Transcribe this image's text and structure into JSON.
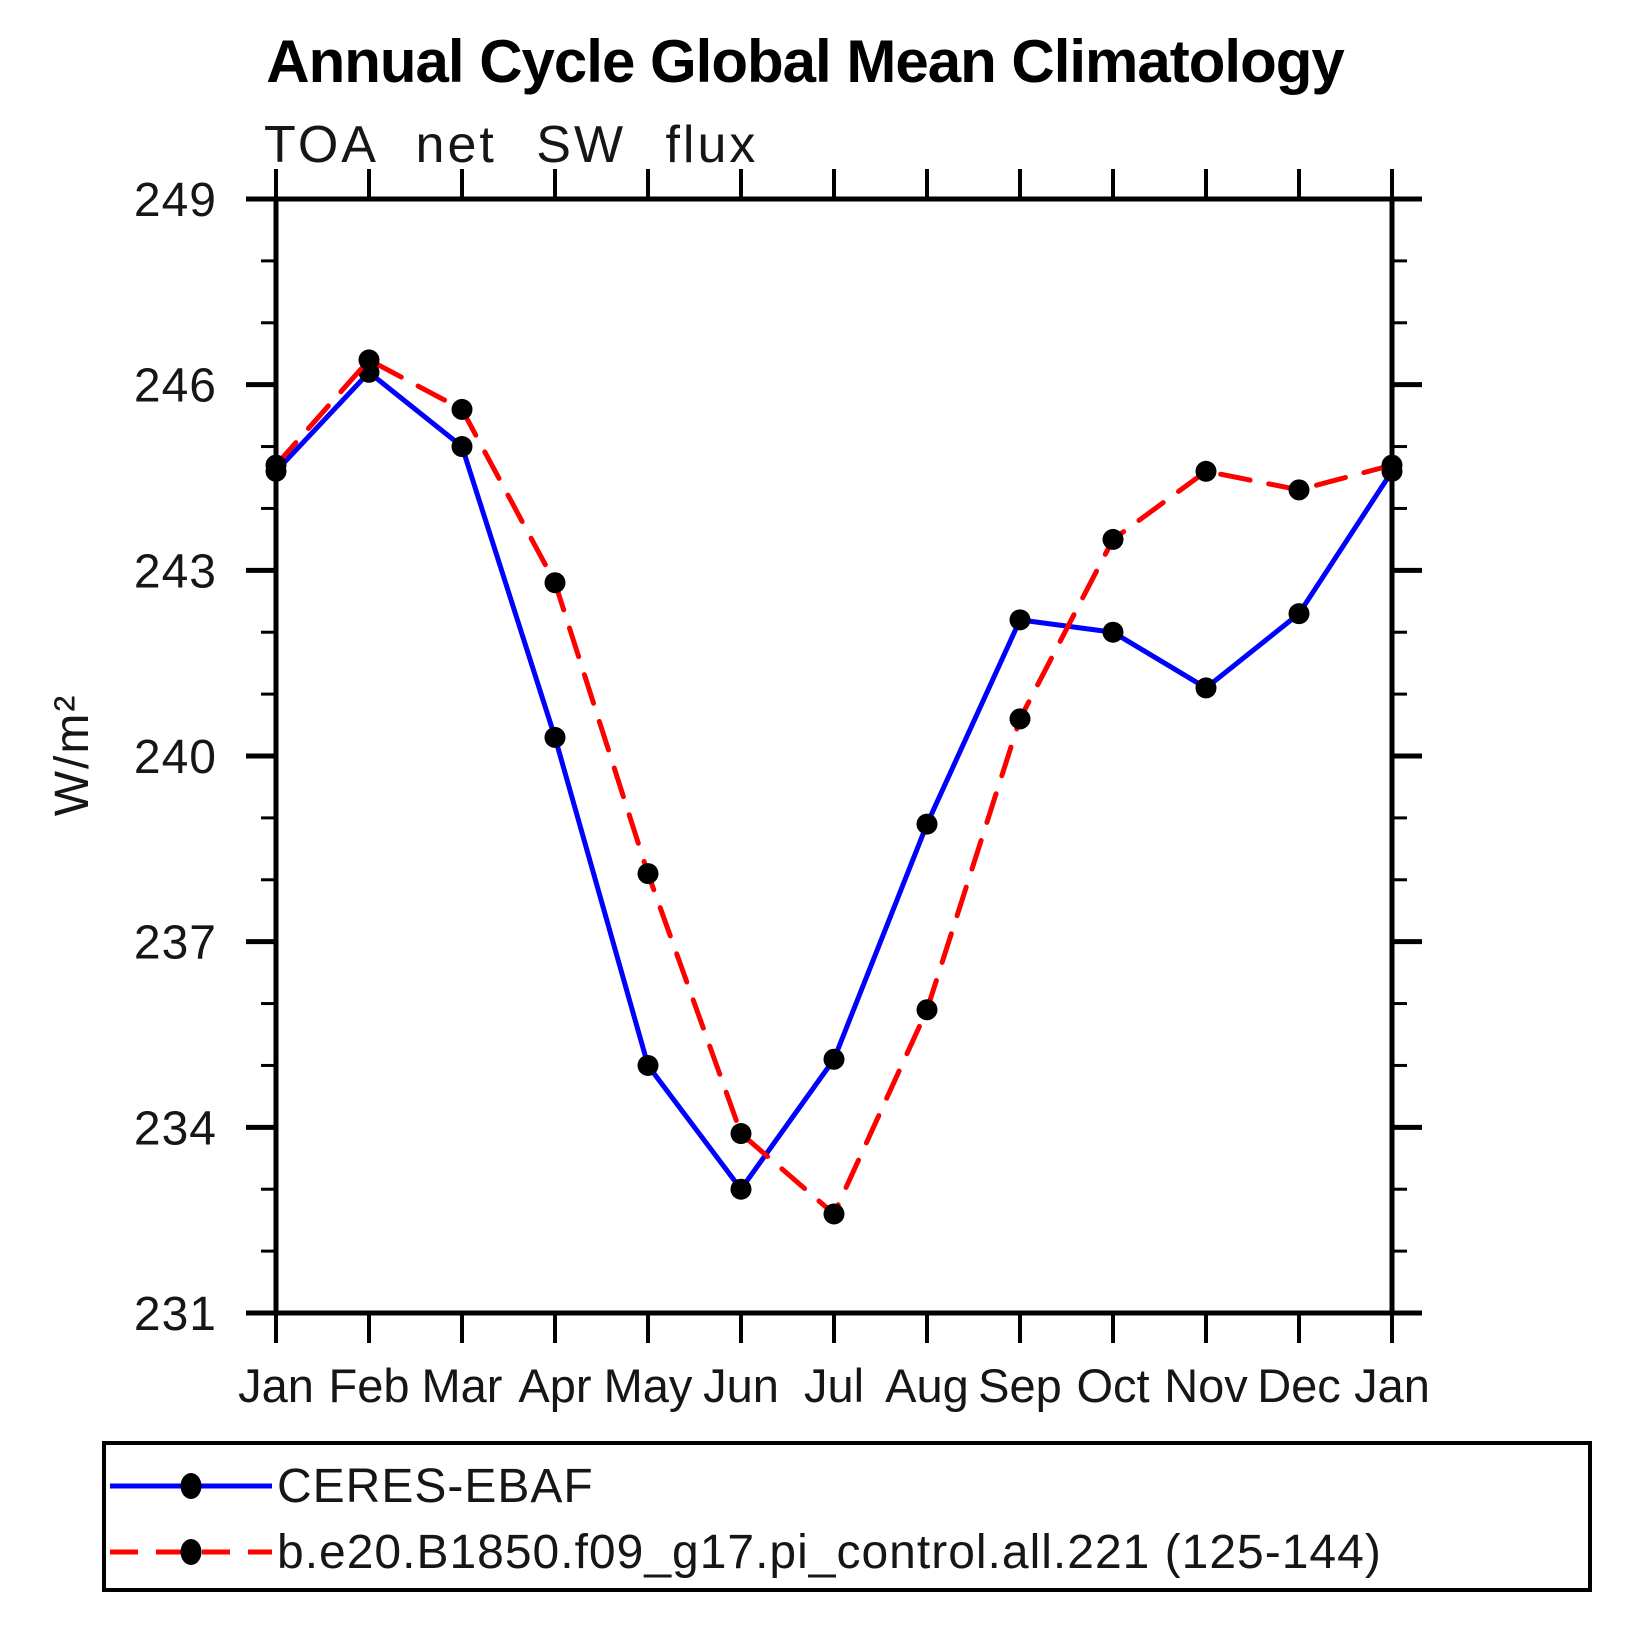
{
  "chart_data": {
    "type": "line",
    "title": "Annual Cycle Global Mean Climatology",
    "subtitle": "TOA net SW flux",
    "ylabel": "W/m²",
    "xlabel": "",
    "categories": [
      "Jan",
      "Feb",
      "Mar",
      "Apr",
      "May",
      "Jun",
      "Jul",
      "Aug",
      "Sep",
      "Oct",
      "Nov",
      "Dec",
      "Jan"
    ],
    "y_axis": {
      "min": 231,
      "max": 249,
      "major_step": 3,
      "minor_step": 1,
      "major_tick_labels": [
        "231",
        "234",
        "237",
        "240",
        "243",
        "246",
        "249"
      ]
    },
    "grid": "off",
    "legend_position": "bottom",
    "series": [
      {
        "name": "CERES-EBAF",
        "color": "#0000ff",
        "line_style": "solid",
        "marker": "filled-circle",
        "marker_color": "#000000",
        "values": [
          244.6,
          246.2,
          245.0,
          240.3,
          235.0,
          233.0,
          235.1,
          238.9,
          242.2,
          242.0,
          241.1,
          242.3,
          244.6
        ]
      },
      {
        "name": "b.e20.B1850.f09_g17.pi_control.all.221 (125-144)",
        "color": "#ff0000",
        "line_style": "dashed",
        "marker": "filled-circle",
        "marker_color": "#000000",
        "values": [
          244.7,
          246.4,
          245.6,
          242.8,
          238.1,
          233.9,
          232.6,
          235.9,
          240.6,
          243.5,
          244.6,
          244.3,
          244.7
        ]
      }
    ],
    "axis_color": "#000000",
    "plot_background": "#ffffff"
  }
}
